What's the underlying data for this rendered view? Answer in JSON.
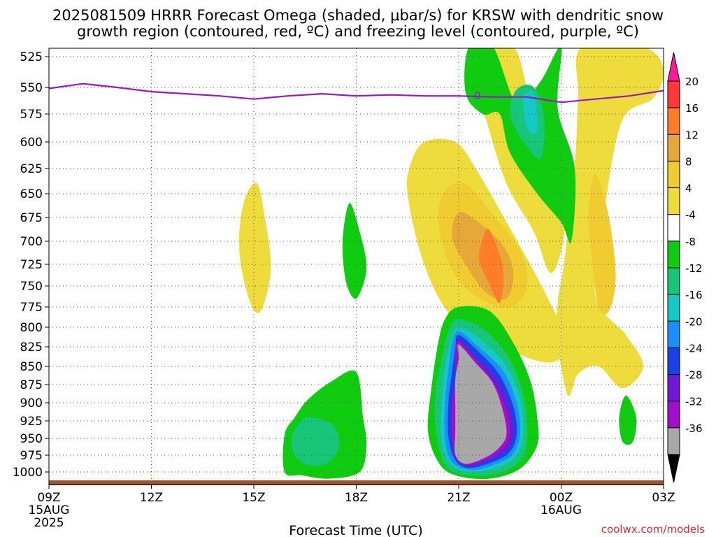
{
  "chart_data": {
    "type": "heatmap",
    "title_line1": "2025081509 HRRR Forecast Omega (shaded, μbar/s) for KRSW with dendritic snow",
    "title_line2": "growth region (contoured, red, ºC) and freezing level (contoured, purple, ºC)",
    "xlabel": "Forecast Time (UTC)",
    "credit": "coolwx.com/models",
    "x_range_hours": [
      0,
      18
    ],
    "x_ticks": [
      {
        "h": 0,
        "label": "09Z",
        "sub1": "15AUG",
        "sub2": "2025"
      },
      {
        "h": 3,
        "label": "12Z"
      },
      {
        "h": 6,
        "label": "15Z"
      },
      {
        "h": 9,
        "label": "18Z"
      },
      {
        "h": 12,
        "label": "21Z"
      },
      {
        "h": 15,
        "label": "00Z",
        "sub1": "16AUG"
      },
      {
        "h": 18,
        "label": "03Z"
      }
    ],
    "y_axis": "pressure_mb",
    "y_ticks": [
      525,
      550,
      575,
      600,
      625,
      650,
      675,
      700,
      725,
      750,
      775,
      800,
      825,
      850,
      875,
      900,
      925,
      950,
      975,
      1000
    ],
    "colorbar": {
      "levels": [
        20,
        16,
        12,
        8,
        4,
        -4,
        -8,
        -12,
        -16,
        -20,
        -24,
        -28,
        -32,
        -36
      ],
      "colors": [
        "#ff1a9a",
        "#ff3838",
        "#ff7d28",
        "#e6a838",
        "#f0cc30",
        "#eedc3c",
        "#ffffff",
        "#10cc10",
        "#18c67a",
        "#14c8c8",
        "#1a90ff",
        "#1c40e8",
        "#7018d8",
        "#a010c8",
        "#a8a8a8",
        "#000000"
      ]
    },
    "freezing_level": {
      "label": "0",
      "points": [
        [
          0,
          551
        ],
        [
          1,
          547
        ],
        [
          2,
          550
        ],
        [
          3,
          554
        ],
        [
          4,
          556
        ],
        [
          5,
          558
        ],
        [
          6,
          561
        ],
        [
          7,
          558
        ],
        [
          8,
          556
        ],
        [
          9,
          558
        ],
        [
          10,
          557
        ],
        [
          11,
          558
        ],
        [
          12,
          558
        ],
        [
          13,
          559
        ],
        [
          14,
          559
        ],
        [
          15,
          564
        ],
        [
          16,
          561
        ],
        [
          17,
          558
        ],
        [
          18,
          553
        ]
      ]
    },
    "omega_regions": [
      {
        "level": 4,
        "points": [
          [
            12.5,
            517
          ],
          [
            13.6,
            517
          ],
          [
            14.1,
            560
          ],
          [
            15.0,
            620
          ],
          [
            15.1,
            690
          ],
          [
            14.7,
            735
          ],
          [
            14.2,
            690
          ],
          [
            13.4,
            640
          ],
          [
            12.8,
            580
          ],
          [
            12.4,
            540
          ]
        ]
      },
      {
        "level": 4,
        "points": [
          [
            15.6,
            517
          ],
          [
            17.4,
            517
          ],
          [
            18,
            535
          ],
          [
            17.7,
            560
          ],
          [
            16.8,
            580
          ],
          [
            16.3,
            660
          ],
          [
            16.0,
            760
          ],
          [
            16.9,
            810
          ],
          [
            17.4,
            850
          ],
          [
            16.8,
            880
          ],
          [
            16.1,
            850
          ],
          [
            15.5,
            860
          ],
          [
            15.2,
            890
          ],
          [
            14.9,
            820
          ],
          [
            14.9,
            770
          ],
          [
            15.1,
            720
          ],
          [
            15.4,
            620
          ],
          [
            15.5,
            560
          ]
        ]
      },
      {
        "level": 4,
        "points": [
          [
            11.0,
            600
          ],
          [
            11.9,
            600
          ],
          [
            12.5,
            625
          ],
          [
            13.4,
            680
          ],
          [
            14.3,
            740
          ],
          [
            14.8,
            780
          ],
          [
            15.3,
            820
          ],
          [
            14.7,
            845
          ],
          [
            13.5,
            830
          ],
          [
            12.2,
            800
          ],
          [
            11.5,
            770
          ],
          [
            10.9,
            715
          ],
          [
            10.5,
            650
          ],
          [
            10.6,
            620
          ]
        ]
      },
      {
        "level": 4,
        "points": [
          [
            5.8,
            650
          ],
          [
            6.1,
            640
          ],
          [
            6.3,
            670
          ],
          [
            6.5,
            730
          ],
          [
            6.2,
            780
          ],
          [
            5.9,
            770
          ],
          [
            5.6,
            720
          ],
          [
            5.6,
            680
          ]
        ]
      },
      {
        "level": 8,
        "points": [
          [
            11.6,
            647
          ],
          [
            12.2,
            640
          ],
          [
            13.0,
            672
          ],
          [
            13.8,
            710
          ],
          [
            14.0,
            752
          ],
          [
            13.5,
            775
          ],
          [
            12.6,
            765
          ],
          [
            11.9,
            738
          ],
          [
            11.5,
            700
          ],
          [
            11.4,
            670
          ]
        ]
      },
      {
        "level": 8,
        "points": [
          [
            16.0,
            630
          ],
          [
            16.4,
            675
          ],
          [
            16.6,
            740
          ],
          [
            16.4,
            780
          ],
          [
            16.1,
            775
          ],
          [
            15.9,
            720
          ],
          [
            15.8,
            670
          ]
        ]
      },
      {
        "level": 12,
        "points": [
          [
            12.0,
            670
          ],
          [
            12.5,
            678
          ],
          [
            13.3,
            705
          ],
          [
            13.6,
            735
          ],
          [
            13.4,
            765
          ],
          [
            12.8,
            758
          ],
          [
            12.2,
            725
          ],
          [
            11.8,
            695
          ]
        ]
      },
      {
        "level": 16,
        "points": [
          [
            12.7,
            698
          ],
          [
            12.9,
            688
          ],
          [
            13.3,
            730
          ],
          [
            13.2,
            770
          ],
          [
            12.9,
            748
          ],
          [
            12.6,
            720
          ]
        ]
      },
      {
        "level": -4,
        "points": [
          [
            12.3,
            517
          ],
          [
            13.0,
            517
          ],
          [
            13.7,
            565
          ],
          [
            14.4,
            545
          ],
          [
            15.0,
            517
          ],
          [
            14.9,
            570
          ],
          [
            15.4,
            625
          ],
          [
            15.3,
            700
          ],
          [
            15.0,
            680
          ],
          [
            14.3,
            650
          ],
          [
            13.5,
            610
          ],
          [
            13.2,
            575
          ],
          [
            12.7,
            575
          ],
          [
            12.2,
            555
          ]
        ]
      },
      {
        "level": -8,
        "points": [
          [
            13.7,
            552
          ],
          [
            14.2,
            550
          ],
          [
            14.5,
            580
          ],
          [
            14.4,
            615
          ],
          [
            13.9,
            600
          ],
          [
            13.5,
            575
          ]
        ]
      },
      {
        "level": -12,
        "points": [
          [
            13.9,
            560
          ],
          [
            14.2,
            556
          ],
          [
            14.3,
            590
          ],
          [
            14.0,
            588
          ]
        ]
      },
      {
        "level": -4,
        "points": [
          [
            8.8,
            660
          ],
          [
            9.1,
            690
          ],
          [
            9.3,
            730
          ],
          [
            9.0,
            765
          ],
          [
            8.7,
            745
          ],
          [
            8.6,
            700
          ]
        ]
      },
      {
        "level": -4,
        "points": [
          [
            8.3,
            870
          ],
          [
            9.0,
            858
          ],
          [
            9.2,
            920
          ],
          [
            9.3,
            960
          ],
          [
            9.1,
            1000
          ],
          [
            8.2,
            1010
          ],
          [
            7.4,
            1005
          ],
          [
            6.9,
            1000
          ],
          [
            6.9,
            945
          ],
          [
            7.2,
            920
          ],
          [
            7.6,
            895
          ]
        ]
      },
      {
        "level": -8,
        "points": [
          [
            7.6,
            920
          ],
          [
            8.3,
            930
          ],
          [
            8.5,
            960
          ],
          [
            8.2,
            985
          ],
          [
            7.6,
            990
          ],
          [
            7.2,
            975
          ],
          [
            7.1,
            950
          ],
          [
            7.3,
            930
          ]
        ]
      },
      {
        "level": -4,
        "points": [
          [
            16.9,
            890
          ],
          [
            17.2,
            920
          ],
          [
            17.1,
            955
          ],
          [
            16.8,
            955
          ],
          [
            16.7,
            920
          ]
        ]
      },
      {
        "level": -4,
        "points": [
          [
            12.0,
            775
          ],
          [
            12.9,
            780
          ],
          [
            13.6,
            820
          ],
          [
            14.1,
            870
          ],
          [
            14.3,
            920
          ],
          [
            14.3,
            960
          ],
          [
            13.8,
            995
          ],
          [
            12.9,
            1010
          ],
          [
            11.9,
            1005
          ],
          [
            11.4,
            985
          ],
          [
            11.1,
            940
          ],
          [
            11.2,
            880
          ],
          [
            11.4,
            820
          ],
          [
            11.6,
            790
          ]
        ]
      },
      {
        "level": -8,
        "points": [
          [
            12.0,
            790
          ],
          [
            12.8,
            805
          ],
          [
            13.5,
            842
          ],
          [
            13.9,
            890
          ],
          [
            14.0,
            935
          ],
          [
            13.9,
            975
          ],
          [
            13.3,
            1000
          ],
          [
            12.4,
            1005
          ],
          [
            11.7,
            995
          ],
          [
            11.4,
            960
          ],
          [
            11.3,
            900
          ],
          [
            11.5,
            840
          ],
          [
            11.7,
            805
          ]
        ]
      },
      {
        "level": -12,
        "points": [
          [
            12.0,
            800
          ],
          [
            12.7,
            818
          ],
          [
            13.4,
            850
          ],
          [
            13.8,
            895
          ],
          [
            13.9,
            940
          ],
          [
            13.7,
            975
          ],
          [
            13.2,
            992
          ],
          [
            12.4,
            1000
          ],
          [
            11.8,
            990
          ],
          [
            11.5,
            955
          ],
          [
            11.5,
            900
          ],
          [
            11.6,
            850
          ],
          [
            11.8,
            815
          ]
        ]
      },
      {
        "level": -16,
        "points": [
          [
            12.0,
            805
          ],
          [
            12.6,
            826
          ],
          [
            13.3,
            856
          ],
          [
            13.7,
            900
          ],
          [
            13.8,
            942
          ],
          [
            13.6,
            973
          ],
          [
            13.1,
            988
          ],
          [
            12.4,
            997
          ],
          [
            11.8,
            985
          ],
          [
            11.6,
            950
          ],
          [
            11.6,
            900
          ],
          [
            11.7,
            855
          ],
          [
            11.8,
            822
          ]
        ]
      },
      {
        "level": -20,
        "points": [
          [
            12.0,
            810
          ],
          [
            12.6,
            832
          ],
          [
            13.2,
            862
          ],
          [
            13.6,
            905
          ],
          [
            13.7,
            943
          ],
          [
            13.5,
            970
          ],
          [
            13.0,
            985
          ],
          [
            12.3,
            994
          ],
          [
            11.9,
            982
          ],
          [
            11.7,
            948
          ],
          [
            11.7,
            900
          ],
          [
            11.8,
            860
          ],
          [
            11.9,
            828
          ]
        ]
      },
      {
        "level": -24,
        "points": [
          [
            12.0,
            815
          ],
          [
            12.5,
            838
          ],
          [
            13.1,
            866
          ],
          [
            13.5,
            908
          ],
          [
            13.6,
            944
          ],
          [
            13.4,
            967
          ],
          [
            12.9,
            982
          ],
          [
            12.3,
            992
          ],
          [
            11.9,
            979
          ],
          [
            11.8,
            946
          ],
          [
            11.8,
            902
          ],
          [
            11.9,
            864
          ],
          [
            11.9,
            833
          ]
        ]
      },
      {
        "level": -28,
        "points": [
          [
            12.0,
            818
          ],
          [
            12.5,
            842
          ],
          [
            13.0,
            870
          ],
          [
            13.4,
            910
          ],
          [
            13.5,
            944
          ],
          [
            13.3,
            965
          ],
          [
            12.9,
            980
          ],
          [
            12.2,
            990
          ],
          [
            11.9,
            976
          ],
          [
            11.8,
            944
          ],
          [
            11.8,
            903
          ],
          [
            11.9,
            866
          ],
          [
            11.9,
            836
          ]
        ]
      },
      {
        "level": -32,
        "points": [
          [
            12.0,
            822
          ],
          [
            12.5,
            846
          ],
          [
            13.0,
            873
          ],
          [
            13.3,
            912
          ],
          [
            13.4,
            944
          ],
          [
            13.2,
            963
          ],
          [
            12.8,
            978
          ],
          [
            12.2,
            988
          ],
          [
            11.9,
            974
          ],
          [
            11.9,
            942
          ],
          [
            11.9,
            904
          ],
          [
            11.9,
            868
          ],
          [
            12.0,
            840
          ]
        ]
      }
    ]
  }
}
